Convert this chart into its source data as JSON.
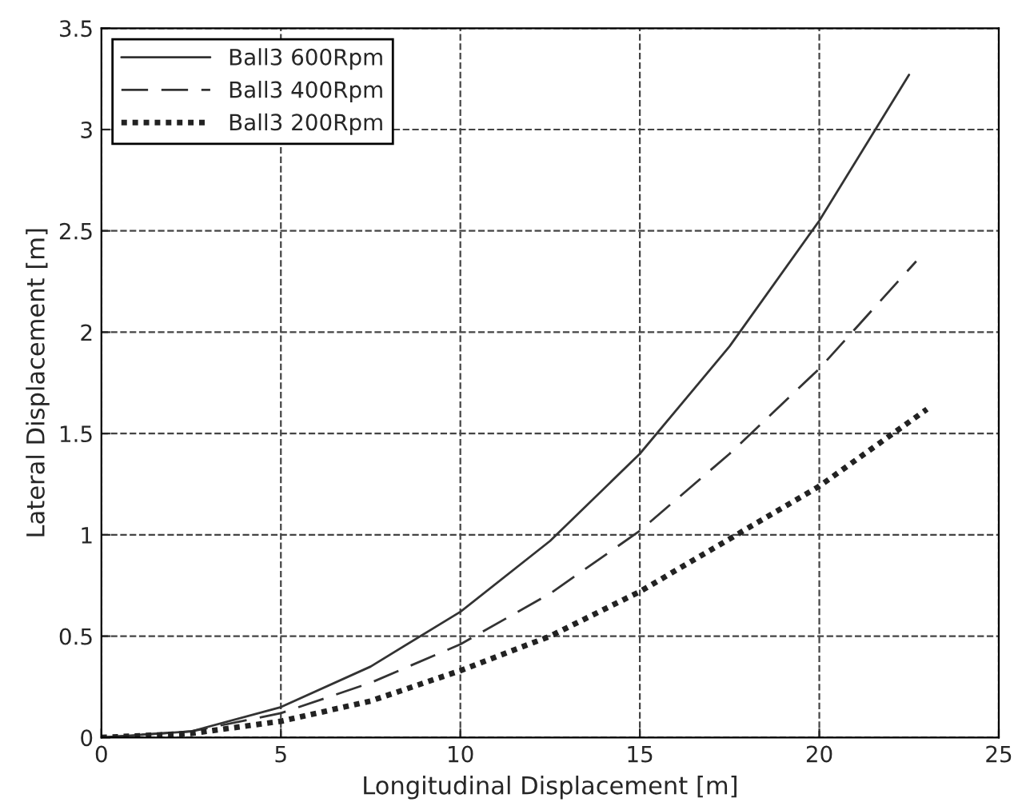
{
  "chart_data": {
    "type": "line",
    "xlabel": "Longitudinal Displacement [m]",
    "ylabel": "Lateral Displacement [m]",
    "xlim": [
      0,
      25
    ],
    "ylim": [
      0,
      3.5
    ],
    "xticks": [
      0,
      5,
      10,
      15,
      20,
      25
    ],
    "yticks": [
      0,
      0.5,
      1,
      1.5,
      2,
      2.5,
      3,
      3.5
    ],
    "grid": true,
    "legend": "top left",
    "series": [
      {
        "name": "Ball3 600Rpm",
        "color": "#333333",
        "line_style": "solid",
        "x": [
          0,
          2.5,
          5,
          7.5,
          10,
          12.5,
          15,
          17.5,
          20,
          22.5
        ],
        "values": [
          0,
          0.03,
          0.15,
          0.35,
          0.62,
          0.97,
          1.4,
          1.93,
          2.55,
          3.27
        ]
      },
      {
        "name": "Ball3 400Rpm",
        "color": "#333333",
        "line_style": "dashed",
        "x": [
          0,
          2.5,
          5,
          7.5,
          10,
          12.5,
          15,
          17.5,
          20,
          22.7
        ],
        "values": [
          0,
          0.03,
          0.12,
          0.27,
          0.46,
          0.71,
          1.02,
          1.4,
          1.82,
          2.35
        ]
      },
      {
        "name": "Ball3 200Rpm",
        "color": "#222222",
        "line_style": "dotted",
        "x": [
          0,
          2.5,
          5,
          7.5,
          10,
          12.5,
          15,
          17.5,
          20,
          23
        ],
        "values": [
          0,
          0.02,
          0.08,
          0.18,
          0.33,
          0.5,
          0.72,
          0.98,
          1.24,
          1.62
        ]
      }
    ]
  }
}
